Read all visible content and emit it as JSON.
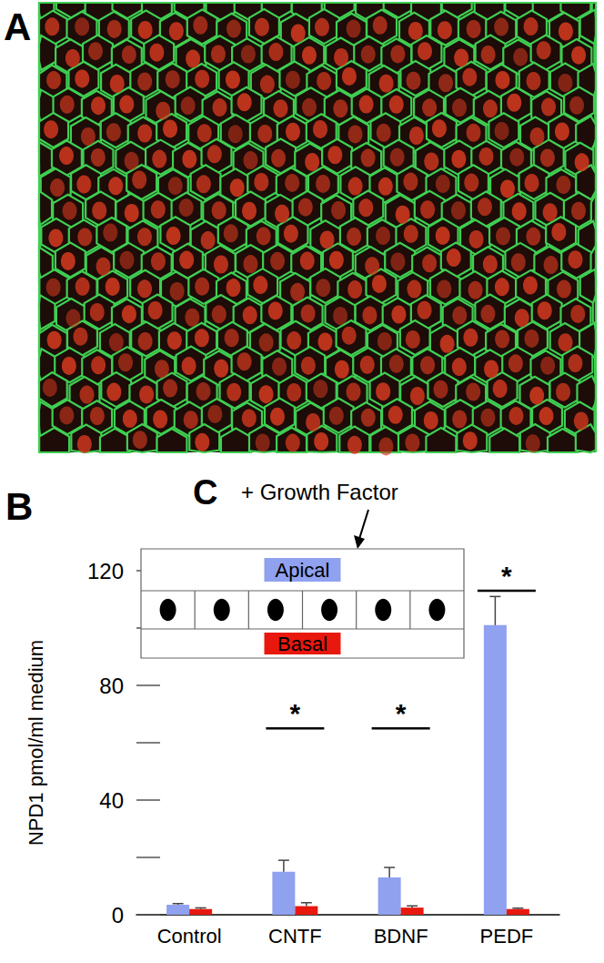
{
  "figure": {
    "panel_labels": [
      "A",
      "B",
      "C"
    ],
    "inset_annotation": "+ Growth Factor"
  },
  "chart_data": {
    "type": "bar",
    "y_label": "NPD1 pmol/ml medium",
    "categories": [
      "Control",
      "CNTF",
      "BDNF",
      "PEDF"
    ],
    "series": [
      {
        "name": "Apical",
        "color": "#8fa1ef",
        "values": [
          3.5,
          15,
          13,
          101
        ],
        "errors": [
          0.4,
          4,
          3.5,
          10
        ]
      },
      {
        "name": "Basal",
        "color": "#e8180f",
        "values": [
          2,
          3,
          2.5,
          2
        ],
        "errors": [
          0.4,
          1.2,
          0.6,
          0.3
        ]
      }
    ],
    "significance": [
      {
        "category": "CNTF",
        "label": "*",
        "y": 65
      },
      {
        "category": "BDNF",
        "label": "*",
        "y": 65
      },
      {
        "category": "PEDF",
        "label": "*",
        "y": 113
      }
    ],
    "ylim": [
      0,
      120
    ],
    "yticks": [
      0,
      40,
      80,
      120
    ],
    "grid": false
  }
}
